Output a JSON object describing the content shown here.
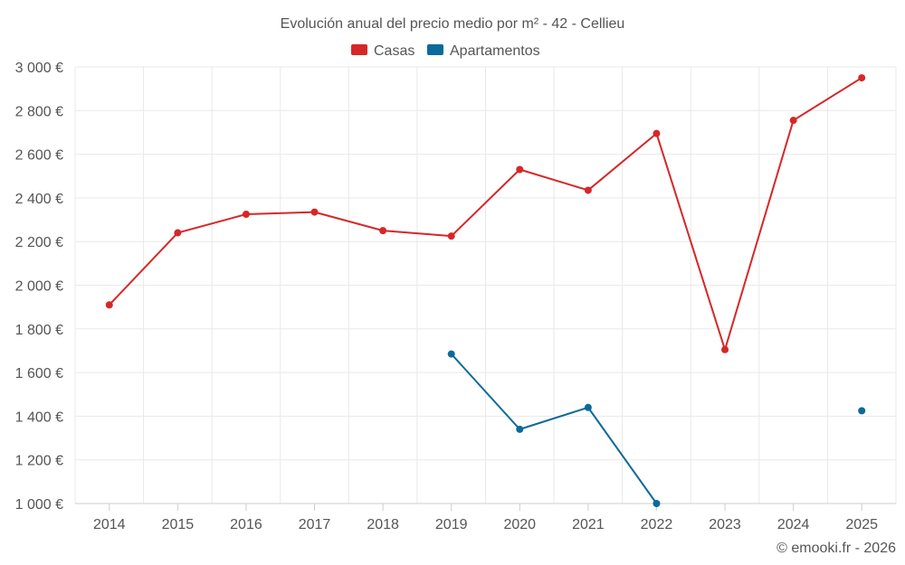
{
  "chart_data": {
    "type": "line",
    "title": "Evolución anual del precio medio por m² - 42 - Cellieu",
    "categories": [
      "2014",
      "2015",
      "2016",
      "2017",
      "2018",
      "2019",
      "2020",
      "2021",
      "2022",
      "2023",
      "2024",
      "2025"
    ],
    "series": [
      {
        "name": "Casas",
        "color": "#d62728",
        "values": [
          1910,
          2240,
          2325,
          2335,
          2250,
          2225,
          2530,
          2435,
          2695,
          1705,
          2755,
          2950
        ]
      },
      {
        "name": "Apartamentos",
        "color": "#0b6a9a",
        "values": [
          null,
          null,
          null,
          null,
          null,
          1685,
          1340,
          1440,
          1000,
          null,
          null,
          1425
        ]
      }
    ],
    "y_ticks": [
      "1 000 €",
      "1 200 €",
      "1 400 €",
      "1 600 €",
      "1 800 €",
      "2 000 €",
      "2 200 €",
      "2 400 €",
      "2 600 €",
      "2 800 €",
      "3 000 €"
    ],
    "ylim": [
      1000,
      3000
    ],
    "xlabel": "",
    "ylabel": "",
    "grid": true,
    "legend_position": "top-center",
    "credit": "© emooki.fr - 2026"
  }
}
